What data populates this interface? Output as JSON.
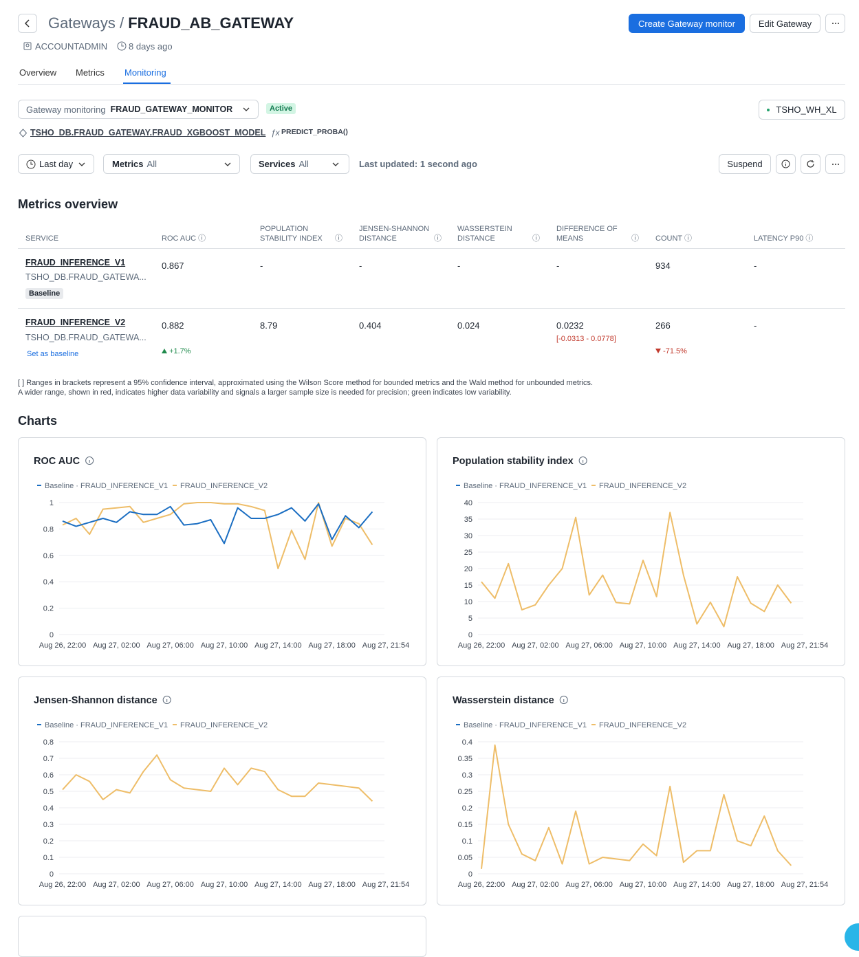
{
  "header": {
    "breadcrumb": "Gateways",
    "separator": "/",
    "title": "FRAUD_AB_GATEWAY",
    "owner": "ACCOUNTADMIN",
    "age": "8 days ago",
    "actions": [
      "Create Gateway monitor",
      "Edit Gateway"
    ]
  },
  "tabs": [
    "Overview",
    "Metrics",
    "Monitoring"
  ],
  "monitor": {
    "label": "Gateway monitoring",
    "name": "FRAUD_GATEWAY_MONITOR",
    "status": "Active",
    "warehouse": "TSHO_WH_XL",
    "model": "TSHO_DB.FRAUD_GATEWAY.FRAUD_XGBOOST_MODEL",
    "function": "PREDICT_PROBA()"
  },
  "filters": {
    "time": "Last day",
    "metrics_label": "Metrics",
    "metrics_value": "All",
    "services_label": "Services",
    "services_value": "All",
    "last_updated": "Last updated: 1 second ago",
    "suspend": "Suspend"
  },
  "overview": {
    "title": "Metrics overview",
    "columns": [
      "SERVICE",
      "ROC AUC",
      "POPULATION STABILITY INDEX",
      "JENSEN-SHANNON DISTANCE",
      "WASSERSTEIN DISTANCE",
      "DIFFERENCE OF MEANS",
      "COUNT",
      "LATENCY P90"
    ],
    "rows": [
      {
        "service": "FRAUD_INFERENCE_V1",
        "path": "TSHO_DB.FRAUD_GATEWA...",
        "badge": "Baseline",
        "values": [
          "0.867",
          "-",
          "-",
          "-",
          "-",
          "934",
          "-"
        ]
      },
      {
        "service": "FRAUD_INFERENCE_V2",
        "path": "TSHO_DB.FRAUD_GATEWA...",
        "link": "Set as baseline",
        "values": [
          "0.882",
          "8.79",
          "0.404",
          "0.024",
          "0.0232",
          "266",
          "-"
        ],
        "roc_change": "+1.7%",
        "interval": "[-0.0313 - 0.0778]",
        "count_change": "-71.5%"
      }
    ],
    "footnote": "[ ] Ranges in brackets represent a 95% confidence interval, approximated using the Wilson Score method for bounded metrics and the Wald method for unbounded metrics. A wider range, shown in red, indicates higher data variability and signals a larger sample size is needed for precision; green indicates low variability."
  },
  "charts_title": "Charts",
  "chart_data": [
    {
      "type": "line",
      "title": "ROC AUC",
      "categories": [
        "Aug 26, 22:00",
        null,
        null,
        null,
        "Aug 27, 02:00",
        null,
        null,
        null,
        "Aug 27, 06:00",
        null,
        null,
        null,
        "Aug 27, 10:00",
        null,
        null,
        null,
        "Aug 27, 14:00",
        null,
        null,
        null,
        "Aug 27, 18:00",
        null,
        null,
        null,
        "Aug 27, 21:54"
      ],
      "series": [
        {
          "name": "Baseline · FRAUD_INFERENCE_V1",
          "color": "#1b6ec2",
          "values": [
            0.86,
            0.82,
            0.85,
            0.88,
            0.85,
            0.93,
            0.91,
            0.91,
            0.97,
            0.83,
            0.84,
            0.87,
            0.69,
            0.96,
            0.88,
            0.88,
            0.91,
            0.96,
            0.86,
            0.99,
            0.72,
            0.9,
            0.81,
            0.93,
            null
          ]
        },
        {
          "name": "FRAUD_INFERENCE_V2",
          "color": "#eebd68",
          "values": [
            0.83,
            0.88,
            0.76,
            0.95,
            0.96,
            0.97,
            0.85,
            0.88,
            0.91,
            0.99,
            1.0,
            1.0,
            0.99,
            0.99,
            0.97,
            0.94,
            0.5,
            0.79,
            0.57,
            1.0,
            0.67,
            0.88,
            0.84,
            0.68,
            null
          ]
        }
      ],
      "ylim": [
        0,
        1
      ],
      "yticks": [
        0,
        0.2,
        0.4,
        0.6,
        0.8,
        1
      ],
      "grid": true
    },
    {
      "type": "line",
      "title": "Population stability index",
      "categories": [
        "Aug 26, 22:00",
        null,
        null,
        null,
        "Aug 27, 02:00",
        null,
        null,
        null,
        "Aug 27, 06:00",
        null,
        null,
        null,
        "Aug 27, 10:00",
        null,
        null,
        null,
        "Aug 27, 14:00",
        null,
        null,
        null,
        "Aug 27, 18:00",
        null,
        null,
        null,
        "Aug 27, 21:54"
      ],
      "series": [
        {
          "name": "Baseline · FRAUD_INFERENCE_V1",
          "color": "#1b6ec2",
          "values": [
            null,
            null,
            null,
            null,
            null,
            null,
            null,
            null,
            null,
            null,
            null,
            null,
            null,
            null,
            null,
            null,
            null,
            null,
            null,
            null,
            null,
            null,
            null,
            null,
            null
          ]
        },
        {
          "name": "FRAUD_INFERENCE_V2",
          "color": "#eebd68",
          "values": [
            16,
            11,
            21.5,
            7.5,
            9,
            15,
            20,
            35.5,
            12,
            18,
            9.7,
            9.3,
            22.5,
            11.5,
            37,
            18,
            3.2,
            9.8,
            2.4,
            17.5,
            9.5,
            7,
            15,
            9.5,
            null
          ]
        }
      ],
      "ylim": [
        0,
        40
      ],
      "yticks": [
        0,
        5,
        10,
        15,
        20,
        25,
        30,
        35,
        40
      ],
      "grid": true
    },
    {
      "type": "line",
      "title": "Jensen-Shannon distance",
      "categories": [
        "Aug 26, 22:00",
        null,
        null,
        null,
        "Aug 27, 02:00",
        null,
        null,
        null,
        "Aug 27, 06:00",
        null,
        null,
        null,
        "Aug 27, 10:00",
        null,
        null,
        null,
        "Aug 27, 14:00",
        null,
        null,
        null,
        "Aug 27, 18:00",
        null,
        null,
        null,
        "Aug 27, 21:54"
      ],
      "series": [
        {
          "name": "Baseline · FRAUD_INFERENCE_V1",
          "color": "#1b6ec2",
          "values": [
            null,
            null,
            null,
            null,
            null,
            null,
            null,
            null,
            null,
            null,
            null,
            null,
            null,
            null,
            null,
            null,
            null,
            null,
            null,
            null,
            null,
            null,
            null,
            null,
            null
          ]
        },
        {
          "name": "FRAUD_INFERENCE_V2",
          "color": "#eebd68",
          "values": [
            0.51,
            0.6,
            0.56,
            0.45,
            0.51,
            0.49,
            0.62,
            0.72,
            0.57,
            0.52,
            0.51,
            0.5,
            0.64,
            0.54,
            0.64,
            0.62,
            0.51,
            0.47,
            0.47,
            0.55,
            0.54,
            0.53,
            0.52,
            0.44,
            null
          ]
        }
      ],
      "ylim": [
        0,
        0.8
      ],
      "yticks": [
        0,
        0.1,
        0.2,
        0.3,
        0.4,
        0.5,
        0.6,
        0.7,
        0.8
      ],
      "grid": true
    },
    {
      "type": "line",
      "title": "Wasserstein distance",
      "categories": [
        "Aug 26, 22:00",
        null,
        null,
        null,
        "Aug 27, 02:00",
        null,
        null,
        null,
        "Aug 27, 06:00",
        null,
        null,
        null,
        "Aug 27, 10:00",
        null,
        null,
        null,
        "Aug 27, 14:00",
        null,
        null,
        null,
        "Aug 27, 18:00",
        null,
        null,
        null,
        "Aug 27, 21:54"
      ],
      "series": [
        {
          "name": "Baseline · FRAUD_INFERENCE_V1",
          "color": "#1b6ec2",
          "values": [
            null,
            null,
            null,
            null,
            null,
            null,
            null,
            null,
            null,
            null,
            null,
            null,
            null,
            null,
            null,
            null,
            null,
            null,
            null,
            null,
            null,
            null,
            null,
            null,
            null
          ]
        },
        {
          "name": "FRAUD_INFERENCE_V2",
          "color": "#eebd68",
          "values": [
            0.015,
            0.39,
            0.15,
            0.06,
            0.04,
            0.14,
            0.03,
            0.19,
            0.03,
            0.05,
            0.045,
            0.04,
            0.09,
            0.055,
            0.265,
            0.035,
            0.07,
            0.07,
            0.24,
            0.1,
            0.085,
            0.175,
            0.07,
            0.025,
            null
          ]
        }
      ],
      "ylim": [
        0,
        0.4
      ],
      "yticks": [
        0,
        0.05,
        0.1,
        0.15,
        0.2,
        0.25,
        0.3,
        0.35,
        0.4
      ],
      "grid": true
    }
  ]
}
